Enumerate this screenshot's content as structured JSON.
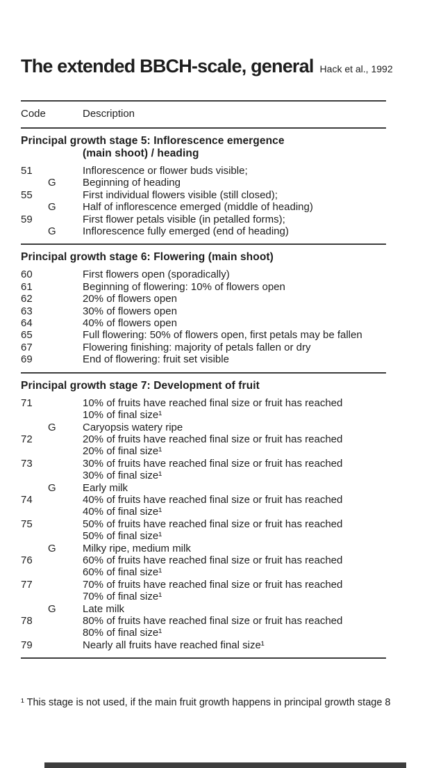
{
  "page": {
    "title": "The extended BBCH-scale, general",
    "citation": "Hack et al., 1992"
  },
  "table": {
    "col_code": "Code",
    "col_desc": "Description",
    "sections": [
      {
        "heading": "Principal growth stage 5: Inflorescence emergence",
        "heading2": "(main shoot) / heading",
        "rows": [
          {
            "code": "51",
            "desc": "Inflorescence or flower buds visible;"
          },
          {
            "code": "G",
            "desc": "Beginning of heading"
          },
          {
            "code": "55",
            "desc": "First individual flowers visible (still closed);"
          },
          {
            "code": "G",
            "desc": "Half of inflorescence emerged (middle of heading)"
          },
          {
            "code": "59",
            "desc": "First flower petals visible (in petalled forms);"
          },
          {
            "code": "G",
            "desc": "Inflorescence fully emerged (end of heading)"
          }
        ]
      },
      {
        "heading": "Principal growth stage 6: Flowering (main shoot)",
        "heading2": "",
        "rows": [
          {
            "code": "60",
            "desc": "First flowers open (sporadically)"
          },
          {
            "code": "61",
            "desc": "Beginning of flowering: 10% of flowers open"
          },
          {
            "code": "62",
            "desc": "20% of flowers open"
          },
          {
            "code": "63",
            "desc": "30% of flowers open"
          },
          {
            "code": "64",
            "desc": "40% of flowers open"
          },
          {
            "code": "65",
            "desc": "Full flowering: 50% of flowers open, first petals may be fallen"
          },
          {
            "code": "67",
            "desc": "Flowering finishing: majority of petals fallen or dry"
          },
          {
            "code": "69",
            "desc": "End of flowering: fruit set visible"
          }
        ]
      },
      {
        "heading": "Principal growth stage 7: Development of fruit",
        "heading2": "",
        "rows": [
          {
            "code": "71",
            "desc": "10% of fruits have reached final size or fruit has reached\n10% of final size¹"
          },
          {
            "code": "G",
            "desc": "Caryopsis watery ripe"
          },
          {
            "code": "72",
            "desc": "20% of fruits have reached final size or fruit has reached\n20% of final size¹"
          },
          {
            "code": "73",
            "desc": "30% of fruits have reached final size or fruit has reached\n30% of final size¹"
          },
          {
            "code": "G",
            "desc": "Early milk"
          },
          {
            "code": "74",
            "desc": "40% of fruits have reached final size or fruit has reached\n40% of final size¹"
          },
          {
            "code": "75",
            "desc": "50% of fruits have reached final size or fruit has reached\n50% of final size¹"
          },
          {
            "code": "G",
            "desc": "Milky ripe, medium milk"
          },
          {
            "code": "76",
            "desc": "60% of fruits have reached final size or fruit has reached\n60% of final size¹"
          },
          {
            "code": "77",
            "desc": "70% of fruits have reached final size or fruit has reached\n70% of final size¹"
          },
          {
            "code": "G",
            "desc": "Late milk"
          },
          {
            "code": "78",
            "desc": "80% of fruits have reached final size or fruit has reached\n80% of final size¹"
          },
          {
            "code": "79",
            "desc": "Nearly all fruits have reached final size¹"
          }
        ]
      }
    ]
  },
  "footnote": "¹ This stage is not used, if the main fruit growth happens in principal growth stage 8",
  "colors": {
    "text": "#1d1d1d",
    "rule": "#3c3c3c",
    "background": "#ffffff",
    "page_edge_bar": "#3d3d3d"
  }
}
